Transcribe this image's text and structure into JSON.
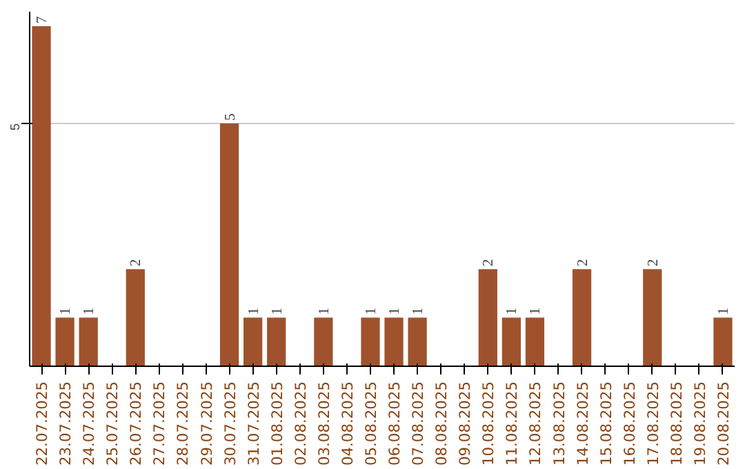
{
  "chart_data": {
    "type": "bar",
    "categories": [
      "22.07.2025",
      "23.07.2025",
      "24.07.2025",
      "25.07.2025",
      "26.07.2025",
      "27.07.2025",
      "28.07.2025",
      "29.07.2025",
      "30.07.2025",
      "31.07.2025",
      "01.08.2025",
      "02.08.2025",
      "03.08.2025",
      "04.08.2025",
      "05.08.2025",
      "06.08.2025",
      "07.08.2025",
      "08.08.2025",
      "09.08.2025",
      "10.08.2025",
      "11.08.2025",
      "12.08.2025",
      "13.08.2025",
      "14.08.2025",
      "15.08.2025",
      "16.08.2025",
      "17.08.2025",
      "18.08.2025",
      "19.08.2025",
      "20.08.2025"
    ],
    "values": [
      7,
      1,
      1,
      0,
      2,
      0,
      0,
      0,
      5,
      1,
      1,
      0,
      1,
      0,
      1,
      1,
      1,
      0,
      0,
      2,
      1,
      1,
      0,
      2,
      0,
      0,
      2,
      0,
      0,
      1
    ],
    "value_labels": [
      "7",
      "1",
      "1",
      null,
      "2",
      null,
      null,
      null,
      "5",
      "1",
      "1",
      null,
      "1",
      null,
      "1",
      "1",
      "1",
      null,
      null,
      "2",
      "1",
      "1",
      null,
      "2",
      null,
      null,
      "2",
      null,
      null,
      "1"
    ],
    "color": "#a0522d",
    "ylim": [
      0,
      7.3
    ],
    "yticks": [
      5
    ],
    "grid": "y"
  }
}
